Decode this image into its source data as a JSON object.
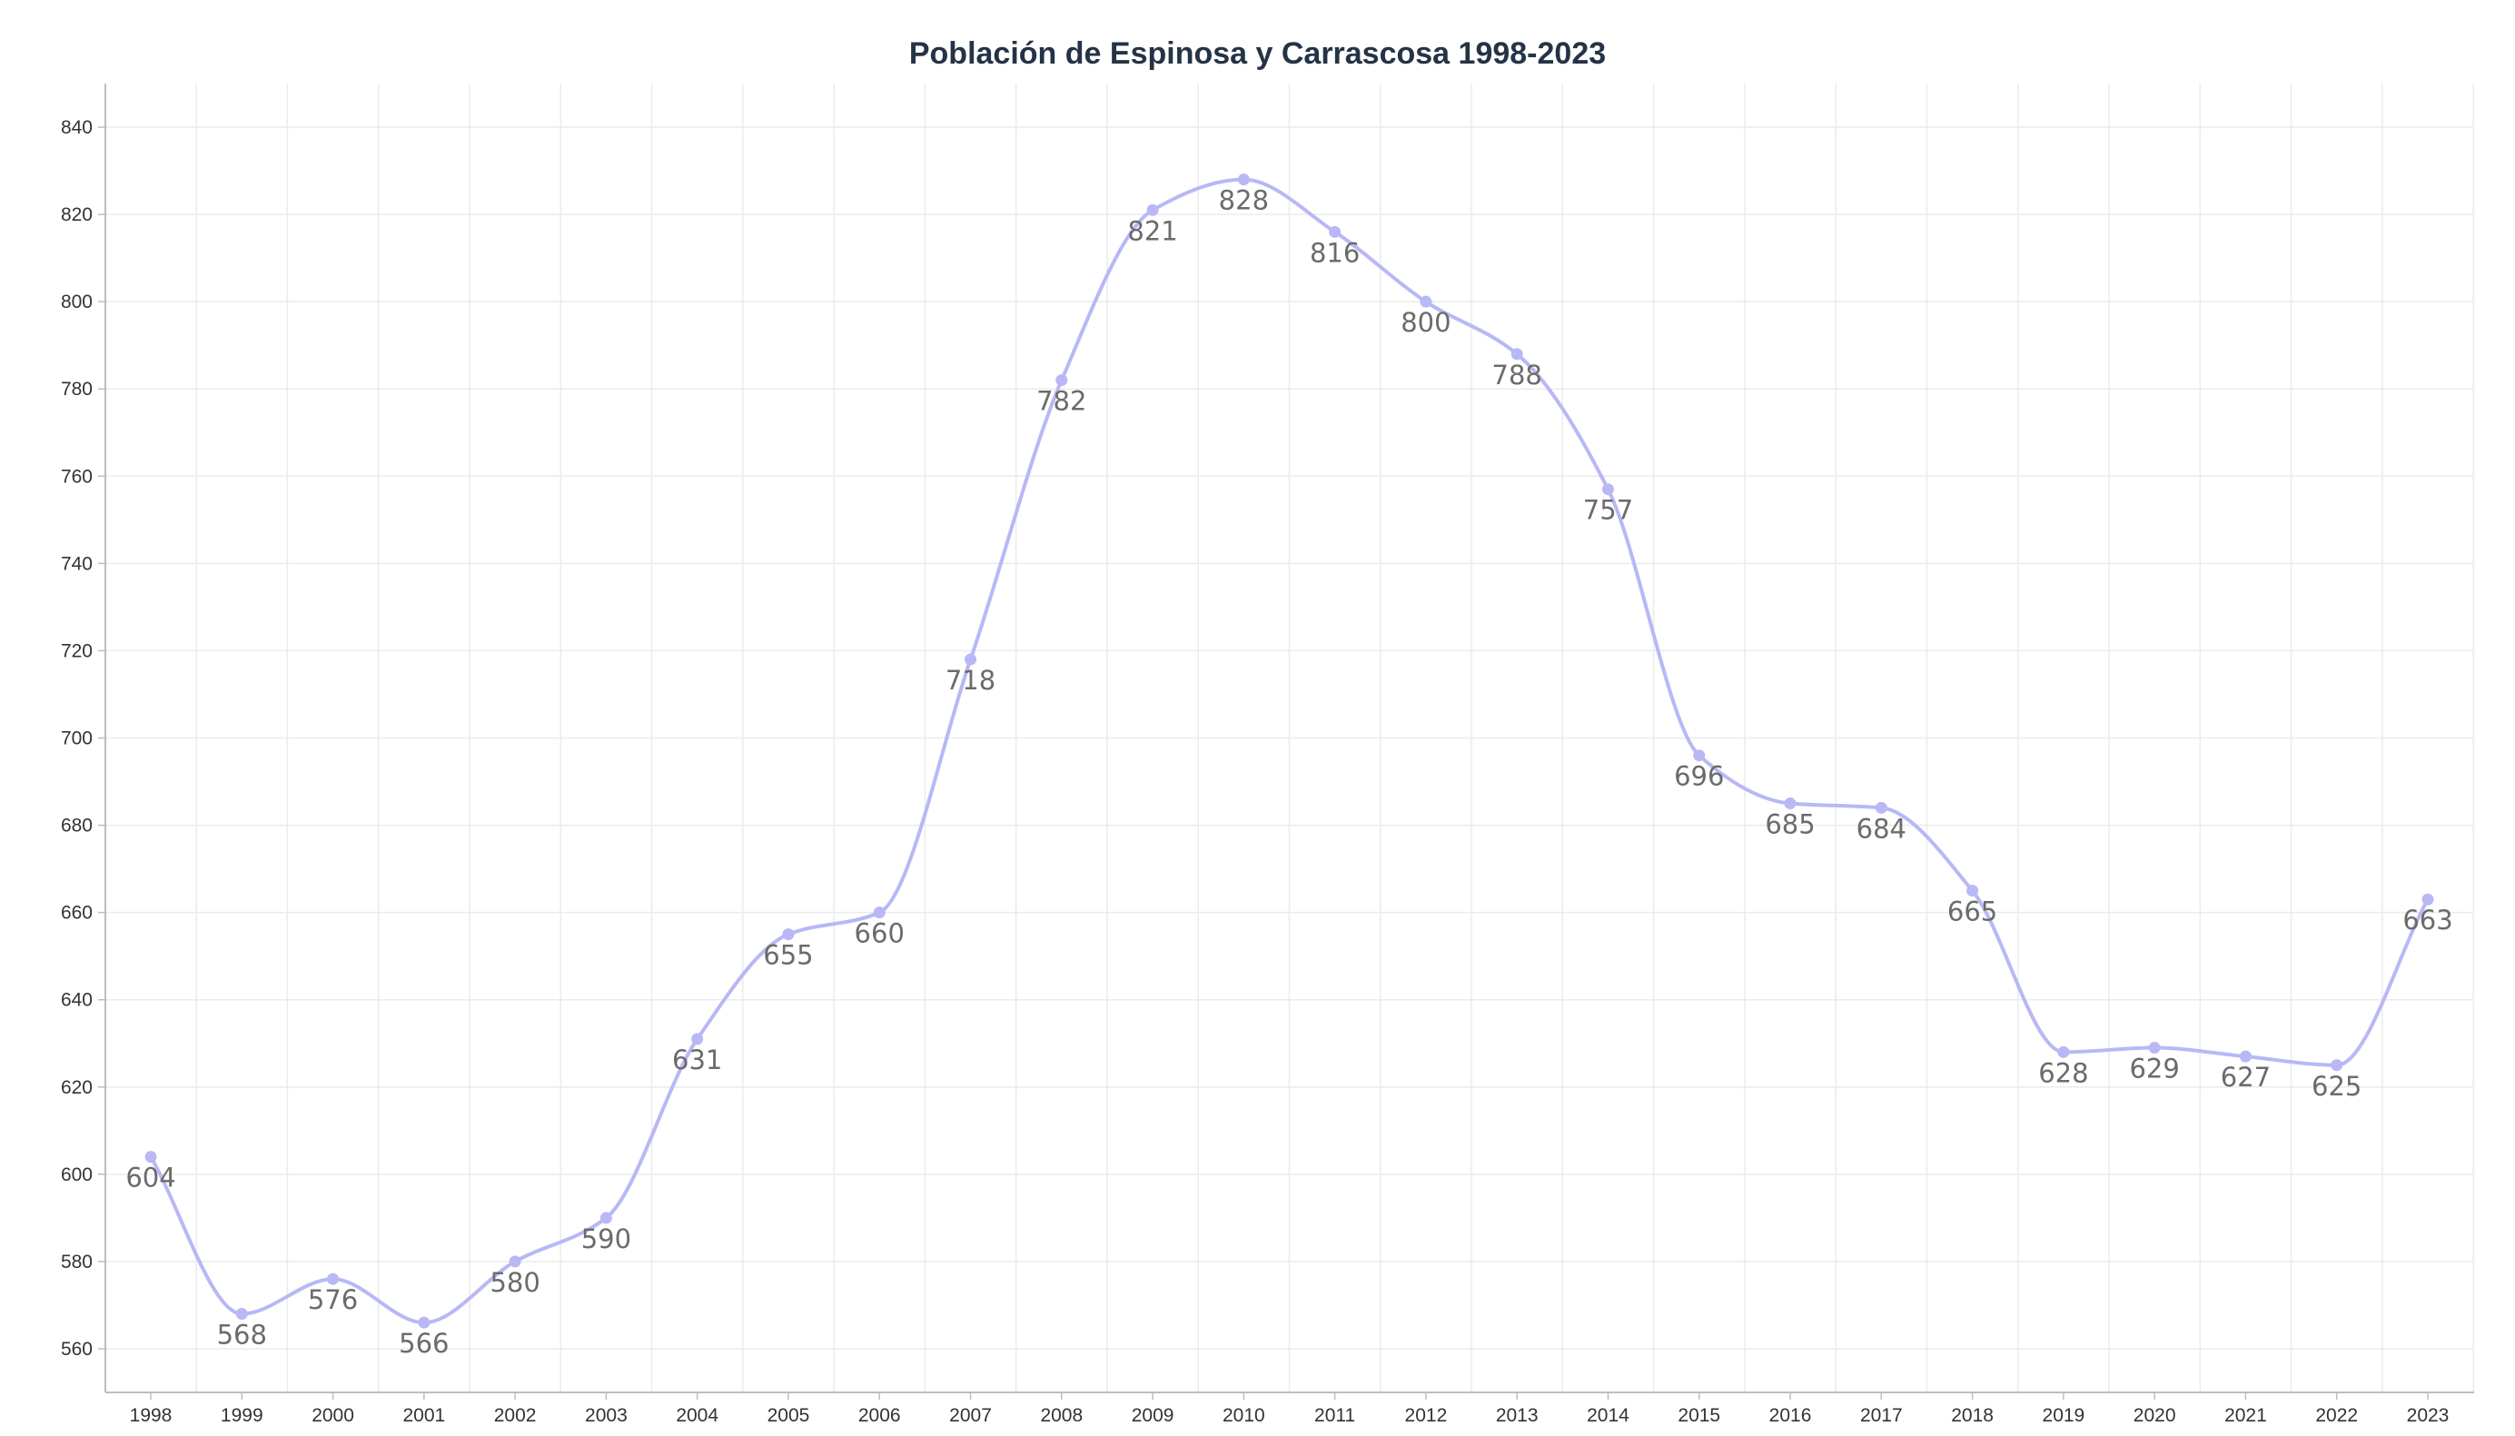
{
  "chart_data": {
    "type": "line",
    "title": "Población de Espinosa y Carrascosa 1998-2023",
    "xlabel": "",
    "ylabel": "",
    "categories": [
      "1998",
      "1999",
      "2000",
      "2001",
      "2002",
      "2003",
      "2004",
      "2005",
      "2006",
      "2007",
      "2008",
      "2009",
      "2010",
      "2011",
      "2012",
      "2013",
      "2014",
      "2015",
      "2016",
      "2017",
      "2018",
      "2019",
      "2020",
      "2021",
      "2022",
      "2023"
    ],
    "series": [
      {
        "values": [
          604,
          568,
          576,
          566,
          580,
          590,
          631,
          655,
          660,
          718,
          782,
          821,
          828,
          816,
          800,
          788,
          757,
          696,
          685,
          684,
          665,
          628,
          629,
          627,
          625,
          663
        ]
      }
    ],
    "ylim": [
      550,
      850
    ],
    "yticks": [
      560,
      580,
      600,
      620,
      640,
      660,
      680,
      700,
      720,
      740,
      760,
      780,
      800,
      820,
      840
    ],
    "grid": true,
    "legend": "none",
    "line_style": "smooth",
    "data_labels": true,
    "colors": {
      "line": "#b7b8f5",
      "grid": "#ebebeb",
      "axis": "#bdbdbd",
      "title": "#253346",
      "label": "#6b6b6b"
    }
  }
}
